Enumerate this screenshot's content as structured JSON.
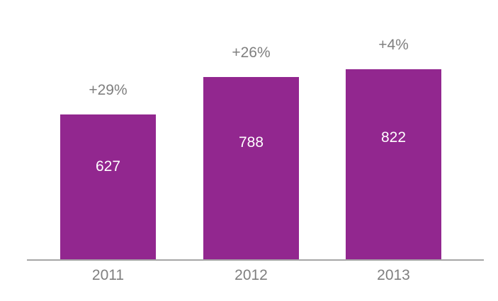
{
  "chart_data": {
    "type": "bar",
    "title": "",
    "xlabel": "",
    "ylabel": "",
    "categories": [
      "2011",
      "2012",
      "2013"
    ],
    "values": [
      627,
      788,
      822
    ],
    "bar_labels": [
      "627",
      "788",
      "822"
    ],
    "growth_labels": [
      "+29%",
      "+26%",
      "+4%"
    ],
    "ylim": [
      0,
      822
    ],
    "grid": "off",
    "legend": "none",
    "colors": {
      "bar": "#92278f",
      "label_gray": "#7f7f7f",
      "value_text": "#ffffff",
      "axis": "#a6a6a6",
      "background": "#ffffff"
    }
  }
}
